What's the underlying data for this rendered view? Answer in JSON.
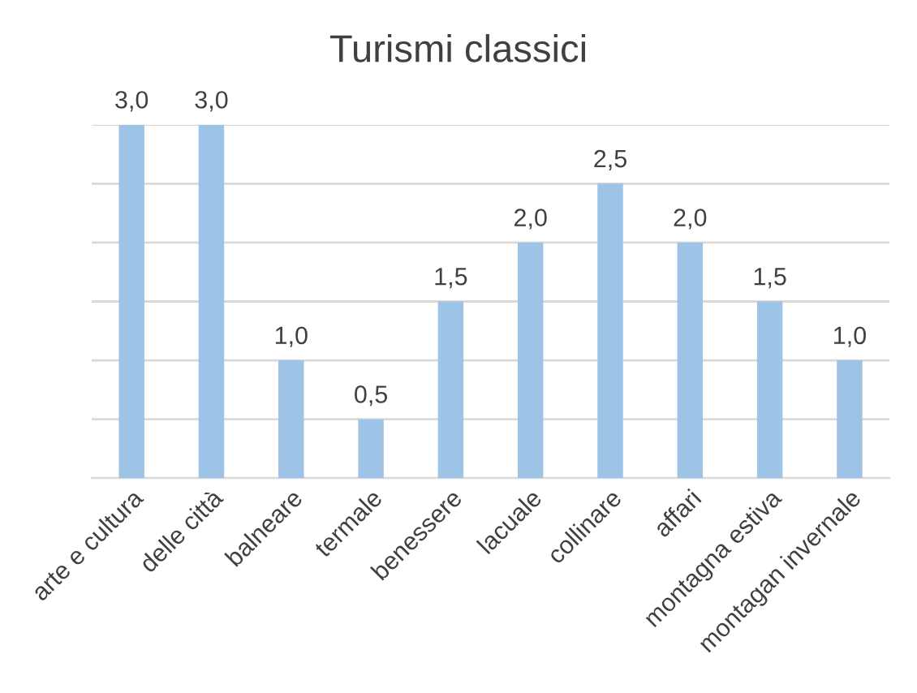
{
  "chart_data": {
    "type": "bar",
    "title": "Turismi classici",
    "categories": [
      "arte e cultura",
      "delle città",
      "balneare",
      "termale",
      "benessere",
      "lacuale",
      "collinare",
      "affari",
      "montagna estiva",
      "montagan invernale"
    ],
    "values": [
      3.0,
      3.0,
      1.0,
      0.5,
      1.5,
      2.0,
      2.5,
      2.0,
      1.5,
      1.0
    ],
    "value_labels": [
      "3,0",
      "3,0",
      "1,0",
      "0,5",
      "1,5",
      "2,0",
      "2,5",
      "2,0",
      "1,5",
      "1,0"
    ],
    "color": "#9dc3e6",
    "ylim": [
      0,
      3
    ],
    "yticks": [
      {
        "value": 0,
        "label": null
      },
      {
        "value": 0.5,
        "label": null
      },
      {
        "value": 1,
        "label": null
      },
      {
        "value": 1.5,
        "label": null
      },
      {
        "value": 2,
        "label": null
      },
      {
        "value": 2.5,
        "label": null
      },
      {
        "value": 3,
        "label": null
      }
    ],
    "tick_labels": "x",
    "grid": "y",
    "legend": false
  }
}
